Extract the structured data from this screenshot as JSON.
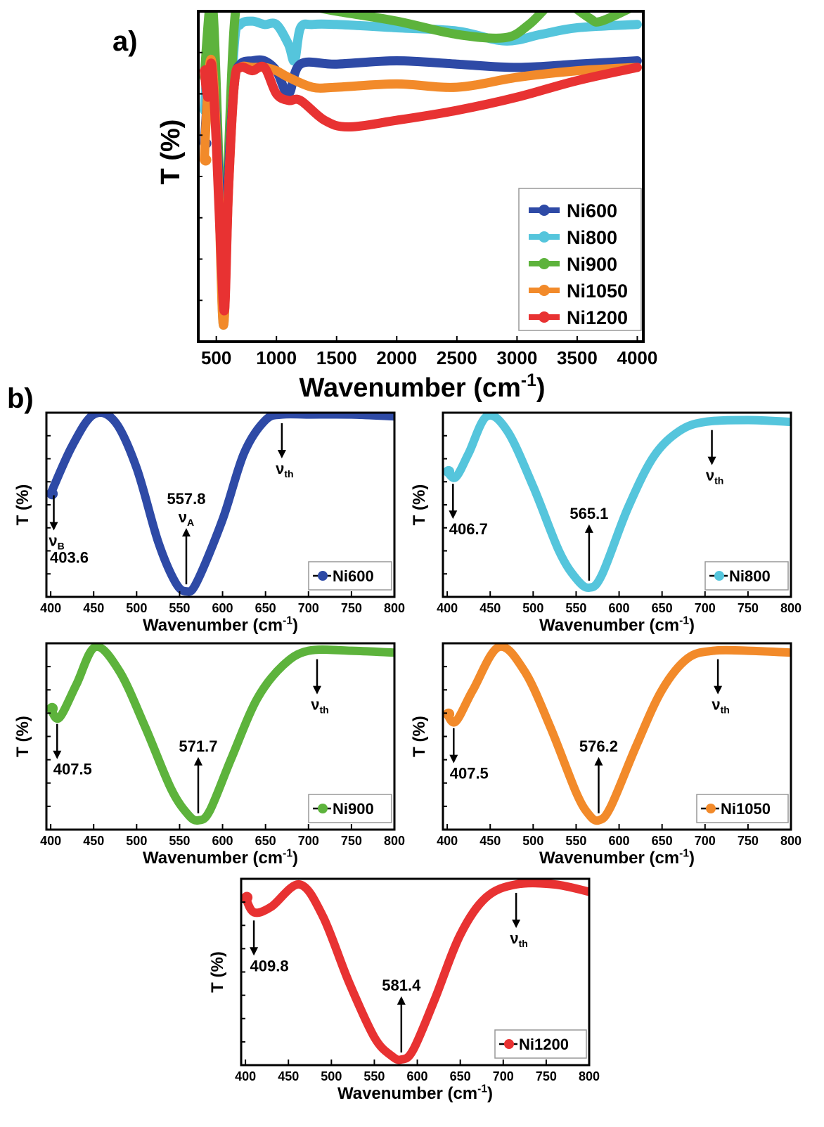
{
  "panels": {
    "a": {
      "label": "a)"
    },
    "b": {
      "label": "b)"
    }
  },
  "chart_data": [
    {
      "id": "a",
      "type": "line",
      "xlabel": "Wavenumber (cm⁻¹)",
      "ylabel": "T (%)",
      "xlim": [
        350,
        4050
      ],
      "ylim": [
        0,
        100
      ],
      "xticks": [
        500,
        1000,
        1500,
        2000,
        2500,
        3000,
        3500,
        4000
      ],
      "yticks_labeled": false,
      "legend_position": "bottom-right",
      "series": [
        {
          "name": "Ni600",
          "color": "#2e4aa6",
          "x": [
            400,
            450,
            480,
            520,
            560,
            600,
            650,
            700,
            800,
            900,
            1000,
            1100,
            1200,
            1500,
            2000,
            2500,
            3000,
            3500,
            4000
          ],
          "y": [
            60,
            84,
            78,
            50,
            12,
            50,
            78,
            84,
            85,
            85,
            82,
            75,
            84,
            84,
            85,
            84,
            83,
            84,
            85
          ]
        },
        {
          "name": "Ni800",
          "color": "#55c5dc",
          "x": [
            400,
            450,
            480,
            520,
            560,
            600,
            650,
            700,
            800,
            900,
            1000,
            1100,
            1150,
            1200,
            1300,
            1500,
            2000,
            2500,
            2900,
            3200,
            3500,
            4000
          ],
          "y": [
            70,
            96,
            90,
            50,
            5,
            50,
            90,
            96,
            97,
            96,
            96,
            90,
            85,
            95,
            96,
            96,
            95,
            94,
            91,
            93,
            95,
            96
          ]
        },
        {
          "name": "Ni900",
          "color": "#5db33c",
          "x": [
            400,
            450,
            480,
            520,
            560,
            600,
            650,
            700,
            800,
            900,
            1000,
            1100,
            1200,
            1500,
            2000,
            2500,
            2900,
            3100,
            3300,
            3400,
            3600,
            3700,
            4000
          ],
          "y": [
            80,
            103,
            96,
            55,
            7,
            55,
            96,
            103,
            103,
            103,
            102,
            101,
            102,
            100,
            97,
            93,
            92,
            96,
            103,
            103,
            98,
            97,
            102
          ]
        },
        {
          "name": "Ni1050",
          "color": "#f28a2a",
          "x": [
            400,
            420,
            450,
            480,
            520,
            560,
            600,
            650,
            700,
            800,
            900,
            1000,
            1100,
            1300,
            1500,
            2000,
            2500,
            3000,
            3500,
            4000
          ],
          "y": [
            55,
            70,
            85,
            78,
            45,
            5,
            45,
            78,
            83,
            83,
            83,
            82,
            80,
            77,
            77,
            78,
            77,
            80,
            82,
            83
          ]
        },
        {
          "name": "Ni1200",
          "color": "#e83232",
          "x": [
            400,
            430,
            460,
            500,
            540,
            570,
            600,
            650,
            700,
            800,
            900,
            1000,
            1100,
            1200,
            1400,
            1600,
            2000,
            2500,
            3000,
            3500,
            4000
          ],
          "y": [
            82,
            74,
            84,
            60,
            25,
            10,
            45,
            78,
            83,
            82,
            83,
            75,
            73,
            73,
            67,
            65,
            67,
            70,
            74,
            79,
            83
          ]
        }
      ]
    },
    {
      "id": "b1",
      "type": "line",
      "xlabel": "Wavenumber (cm⁻¹)",
      "ylabel": "T (%)",
      "xlim": [
        395,
        800
      ],
      "ylim": [
        0,
        100
      ],
      "xticks": [
        400,
        450,
        500,
        550,
        600,
        650,
        700,
        750,
        800
      ],
      "legend_position": "bottom-right",
      "series": [
        {
          "name": "Ni600",
          "color": "#2e4aa6",
          "x": [
            400,
            425,
            450,
            475,
            500,
            525,
            545,
            557.8,
            570,
            600,
            625,
            650,
            670,
            700,
            750,
            800
          ],
          "y": [
            56,
            82,
            99,
            95,
            70,
            30,
            8,
            3,
            8,
            42,
            78,
            96,
            99,
            99,
            99,
            98
          ]
        }
      ],
      "annotations": [
        {
          "x": 403.6,
          "text": "403.6",
          "sub_symbol": "ν",
          "sub_text": "B",
          "direction": "down"
        },
        {
          "x": 557.8,
          "text": "557.8",
          "sub_symbol": "ν",
          "sub_text": "A",
          "direction": "up"
        },
        {
          "x": 669,
          "sub_symbol": "ν",
          "sub_text": "th",
          "direction": "down"
        }
      ]
    },
    {
      "id": "b2",
      "type": "line",
      "xlabel": "Wavenumber (cm⁻¹)",
      "ylabel": "T (%)",
      "xlim": [
        395,
        800
      ],
      "ylim": [
        0,
        100
      ],
      "xticks": [
        400,
        450,
        500,
        550,
        600,
        650,
        700,
        750,
        800
      ],
      "legend_position": "bottom-right",
      "series": [
        {
          "name": "Ni800",
          "color": "#55c5dc",
          "x": [
            400,
            410,
            425,
            446,
            470,
            500,
            530,
            550,
            565.1,
            580,
            610,
            640,
            670,
            700,
            750,
            800
          ],
          "y": [
            68,
            65,
            78,
            98,
            90,
            60,
            25,
            10,
            5,
            12,
            48,
            76,
            90,
            95,
            96,
            95
          ]
        }
      ],
      "annotations": [
        {
          "x": 406.7,
          "text": "406.7",
          "direction": "down"
        },
        {
          "x": 565.1,
          "text": "565.1",
          "direction": "up"
        },
        {
          "x": 708,
          "sub_symbol": "ν",
          "sub_text": "th",
          "direction": "down"
        }
      ]
    },
    {
      "id": "b3",
      "type": "line",
      "xlabel": "Wavenumber (cm⁻¹)",
      "ylabel": "T (%)",
      "xlim": [
        395,
        800
      ],
      "ylim": [
        0,
        100
      ],
      "xticks": [
        400,
        450,
        500,
        550,
        600,
        650,
        700,
        750,
        800
      ],
      "legend_position": "bottom-right",
      "series": [
        {
          "name": "Ni900",
          "color": "#5db33c",
          "x": [
            400,
            410,
            430,
            452,
            480,
            510,
            540,
            560,
            571.7,
            585,
            610,
            640,
            670,
            700,
            750,
            800
          ],
          "y": [
            65,
            60,
            78,
            98,
            85,
            55,
            22,
            8,
            5,
            10,
            38,
            70,
            88,
            96,
            96,
            95
          ]
        }
      ],
      "annotations": [
        {
          "x": 407.5,
          "text": "407.5",
          "direction": "down"
        },
        {
          "x": 571.7,
          "text": "571.7",
          "direction": "up"
        },
        {
          "x": 710,
          "sub_symbol": "ν",
          "sub_text": "th",
          "direction": "down"
        }
      ]
    },
    {
      "id": "b4",
      "type": "line",
      "xlabel": "Wavenumber (cm⁻¹)",
      "ylabel": "T (%)",
      "xlim": [
        395,
        800
      ],
      "ylim": [
        0,
        100
      ],
      "xticks": [
        400,
        450,
        500,
        550,
        600,
        650,
        700,
        750,
        800
      ],
      "legend_position": "bottom-right",
      "series": [
        {
          "name": "Ni1050",
          "color": "#f28a2a",
          "x": [
            400,
            410,
            430,
            460,
            490,
            520,
            550,
            565,
            576.2,
            590,
            620,
            650,
            680,
            710,
            750,
            800
          ],
          "y": [
            62,
            58,
            75,
            98,
            85,
            55,
            20,
            8,
            5,
            12,
            45,
            75,
            92,
            96,
            96,
            95
          ]
        }
      ],
      "annotations": [
        {
          "x": 407.5,
          "text": "407.5",
          "direction": "down"
        },
        {
          "x": 576.2,
          "text": "576.2",
          "direction": "up"
        },
        {
          "x": 715,
          "sub_symbol": "ν",
          "sub_text": "th",
          "direction": "down"
        }
      ]
    },
    {
      "id": "b5",
      "type": "line",
      "xlabel": "Wavenumber (cm⁻¹)",
      "ylabel": "T (%)",
      "xlim": [
        395,
        800
      ],
      "ylim": [
        0,
        100
      ],
      "xticks": [
        400,
        450,
        500,
        550,
        600,
        650,
        700,
        750,
        800
      ],
      "legend_position": "bottom-right",
      "series": [
        {
          "name": "Ni1200",
          "color": "#e83232",
          "x": [
            400,
            410,
            430,
            463,
            490,
            520,
            550,
            570,
            581.4,
            595,
            620,
            650,
            680,
            715,
            760,
            800
          ],
          "y": [
            90,
            82,
            85,
            97,
            80,
            45,
            15,
            5,
            3,
            8,
            35,
            70,
            90,
            97,
            97,
            93
          ]
        }
      ],
      "annotations": [
        {
          "x": 409.8,
          "text": "409.8",
          "direction": "down"
        },
        {
          "x": 581.4,
          "text": "581.4",
          "direction": "up"
        },
        {
          "x": 715,
          "sub_symbol": "ν",
          "sub_text": "th",
          "direction": "down"
        }
      ]
    }
  ]
}
